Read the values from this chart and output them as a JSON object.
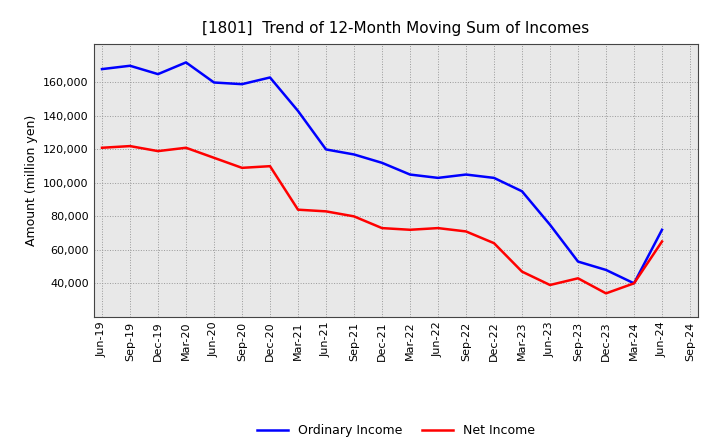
{
  "title": "[1801]  Trend of 12-Month Moving Sum of Incomes",
  "ylabel": "Amount (million yen)",
  "x_labels": [
    "Jun-19",
    "Sep-19",
    "Dec-19",
    "Mar-20",
    "Jun-20",
    "Sep-20",
    "Dec-20",
    "Mar-21",
    "Jun-21",
    "Sep-21",
    "Dec-21",
    "Mar-22",
    "Jun-22",
    "Sep-22",
    "Dec-22",
    "Mar-23",
    "Jun-23",
    "Sep-23",
    "Dec-23",
    "Mar-24",
    "Jun-24",
    "Sep-24"
  ],
  "ordinary_income": [
    168000,
    170000,
    165000,
    172000,
    160000,
    159000,
    163000,
    143000,
    120000,
    117000,
    112000,
    105000,
    103000,
    105000,
    103000,
    95000,
    75000,
    53000,
    48000,
    40000,
    72000,
    null
  ],
  "net_income": [
    121000,
    122000,
    119000,
    121000,
    115000,
    109000,
    110000,
    84000,
    83000,
    80000,
    73000,
    72000,
    73000,
    71000,
    64000,
    47000,
    39000,
    43000,
    34000,
    40000,
    65000,
    null
  ],
  "ordinary_color": "#0000FF",
  "net_color": "#FF0000",
  "ylim_min": 20000,
  "ylim_max": 183000,
  "yticks": [
    40000,
    60000,
    80000,
    100000,
    120000,
    140000,
    160000
  ],
  "plot_bg_color": "#E8E8E8",
  "fig_bg_color": "#FFFFFF",
  "grid_color": "#999999",
  "legend_labels": [
    "Ordinary Income",
    "Net Income"
  ]
}
